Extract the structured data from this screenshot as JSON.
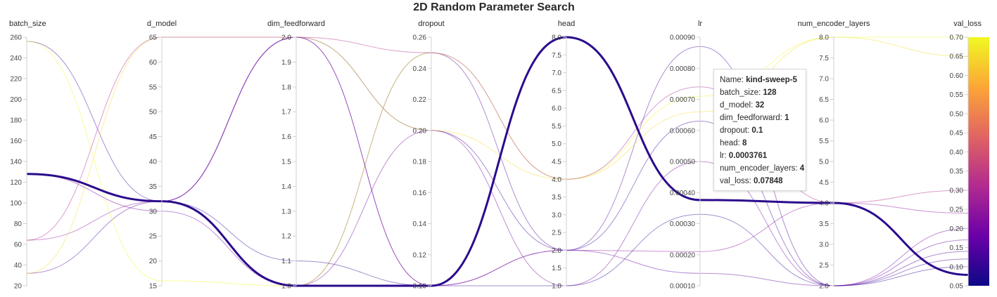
{
  "chart_data": {
    "type": "parallel_coordinates",
    "title": "2D Random Parameter Search",
    "axes": [
      {
        "name": "batch_size",
        "min": 20,
        "max": 260,
        "ticks": [
          260,
          240,
          220,
          200,
          180,
          160,
          140,
          120,
          100,
          80,
          60,
          40,
          20
        ],
        "tick_labels": [
          "260",
          "240",
          "220",
          "200",
          "180",
          "160",
          "140",
          "120",
          "100",
          "80",
          "60",
          "40",
          "20"
        ]
      },
      {
        "name": "d_model",
        "min": 15,
        "max": 65,
        "ticks": [
          65,
          60,
          55,
          50,
          45,
          40,
          35,
          30,
          25,
          20,
          15
        ],
        "tick_labels": [
          "65",
          "60",
          "55",
          "50",
          "45",
          "40",
          "35",
          "30",
          "25",
          "20",
          "15"
        ]
      },
      {
        "name": "dim_feedforward",
        "min": 1.0,
        "max": 2.0,
        "ticks": [
          2.0,
          1.9,
          1.8,
          1.7,
          1.6,
          1.5,
          1.4,
          1.3,
          1.2,
          1.1,
          1.0
        ],
        "tick_labels": [
          "2.0",
          "1.9",
          "1.8",
          "1.7",
          "1.6",
          "1.5",
          "1.4",
          "1.3",
          "1.2",
          "1.1",
          "1.0"
        ]
      },
      {
        "name": "dropout",
        "min": 0.1,
        "max": 0.26,
        "ticks": [
          0.26,
          0.24,
          0.22,
          0.2,
          0.18,
          0.16,
          0.14,
          0.12,
          0.1
        ],
        "tick_labels": [
          "0.26",
          "0.24",
          "0.22",
          "0.20",
          "0.18",
          "0.16",
          "0.14",
          "0.12",
          "0.10"
        ]
      },
      {
        "name": "head",
        "min": 1.0,
        "max": 8.0,
        "ticks": [
          8.0,
          7.5,
          7.0,
          6.5,
          6.0,
          5.5,
          5.0,
          4.5,
          4.0,
          3.5,
          3.0,
          2.5,
          2.0,
          1.5,
          1.0
        ],
        "tick_labels": [
          "8.0",
          "7.5",
          "7.0",
          "6.5",
          "6.0",
          "5.5",
          "5.0",
          "4.5",
          "4.0",
          "3.5",
          "3.0",
          "2.5",
          "2.0",
          "1.5",
          "1.0"
        ]
      },
      {
        "name": "lr",
        "min": 0.0001,
        "max": 0.0009,
        "ticks": [
          0.0009,
          0.0008,
          0.0007,
          0.0006,
          0.0005,
          0.0004,
          0.0003,
          0.0002,
          0.0001
        ],
        "tick_labels": [
          "0.00090",
          "0.00080",
          "0.00070",
          "0.00060",
          "0.00050",
          "0.00040",
          "0.00030",
          "0.00020",
          "0.00010"
        ]
      },
      {
        "name": "num_encoder_layers",
        "min": 2.0,
        "max": 8.0,
        "ticks": [
          8.0,
          7.5,
          7.0,
          6.5,
          6.0,
          5.5,
          5.0,
          4.5,
          4.0,
          3.5,
          3.0,
          2.5,
          2.0
        ],
        "tick_labels": [
          "8.0",
          "7.5",
          "7.0",
          "6.5",
          "6.0",
          "5.5",
          "5.0",
          "4.5",
          "4.0",
          "3.5",
          "3.0",
          "2.5",
          "2.0"
        ]
      },
      {
        "name": "val_loss",
        "min": 0.05,
        "max": 0.7,
        "ticks": [
          0.7,
          0.65,
          0.6,
          0.55,
          0.5,
          0.45,
          0.4,
          0.35,
          0.3,
          0.25,
          0.2,
          0.15,
          0.1,
          0.05
        ],
        "tick_labels": [
          "0.70",
          "0.65",
          "0.60",
          "0.55",
          "0.50",
          "0.45",
          "0.40",
          "0.35",
          "0.30",
          "0.25",
          "0.20",
          "0.15",
          "0.10",
          "0.05"
        ]
      }
    ],
    "colorscale": [
      "#0d0887",
      "#6a00a8",
      "#b12a90",
      "#e16462",
      "#fca636",
      "#f0f921"
    ],
    "runs": [
      {
        "values": [
          128,
          32,
          1.0,
          0.1,
          8.0,
          0.0003761,
          4.0,
          0.07848
        ],
        "highlight": true
      },
      {
        "values": [
          256,
          32,
          2.0,
          0.2,
          2.0,
          0.00063,
          2.0,
          0.12
        ]
      },
      {
        "values": [
          128,
          30,
          1.0,
          0.2,
          1.0,
          0.0005,
          2.0,
          0.2
        ]
      },
      {
        "values": [
          64,
          32,
          2.0,
          0.1,
          2.0,
          0.00021,
          4.0,
          0.24
        ]
      },
      {
        "values": [
          32,
          32,
          1.0,
          0.25,
          2.0,
          0.00087,
          2.0,
          0.14
        ]
      },
      {
        "values": [
          32,
          65,
          2.0,
          0.2,
          4.0,
          0.00066,
          8.0,
          0.65
        ]
      },
      {
        "values": [
          256,
          16,
          1.0,
          0.25,
          4.0,
          0.00071,
          8.0,
          0.7
        ]
      },
      {
        "values": [
          128,
          32,
          2.0,
          0.1,
          2.0,
          0.00014,
          2.0,
          0.17
        ]
      },
      {
        "values": [
          64,
          65,
          2.0,
          0.25,
          4.0,
          0.00074,
          4.0,
          0.3
        ]
      },
      {
        "values": [
          128,
          32,
          1.1,
          0.1,
          1.0,
          0.00033,
          2.0,
          0.1
        ]
      }
    ],
    "legend": "colorbar val_loss at right"
  },
  "tooltip": {
    "name_key": "Name:",
    "name_val": "kind-sweep-5",
    "batch_size_key": "batch_size:",
    "batch_size_val": "128",
    "d_model_key": "d_model:",
    "d_model_val": "32",
    "dim_feedforward_key": "dim_feedforward:",
    "dim_feedforward_val": "1",
    "dropout_key": "dropout:",
    "dropout_val": "0.1",
    "head_key": "head:",
    "head_val": "8",
    "lr_key": "lr:",
    "lr_val": "0.0003761",
    "num_encoder_layers_key": "num_encoder_layers:",
    "num_encoder_layers_val": "4",
    "val_loss_key": "val_loss:",
    "val_loss_val": "0.07848"
  }
}
